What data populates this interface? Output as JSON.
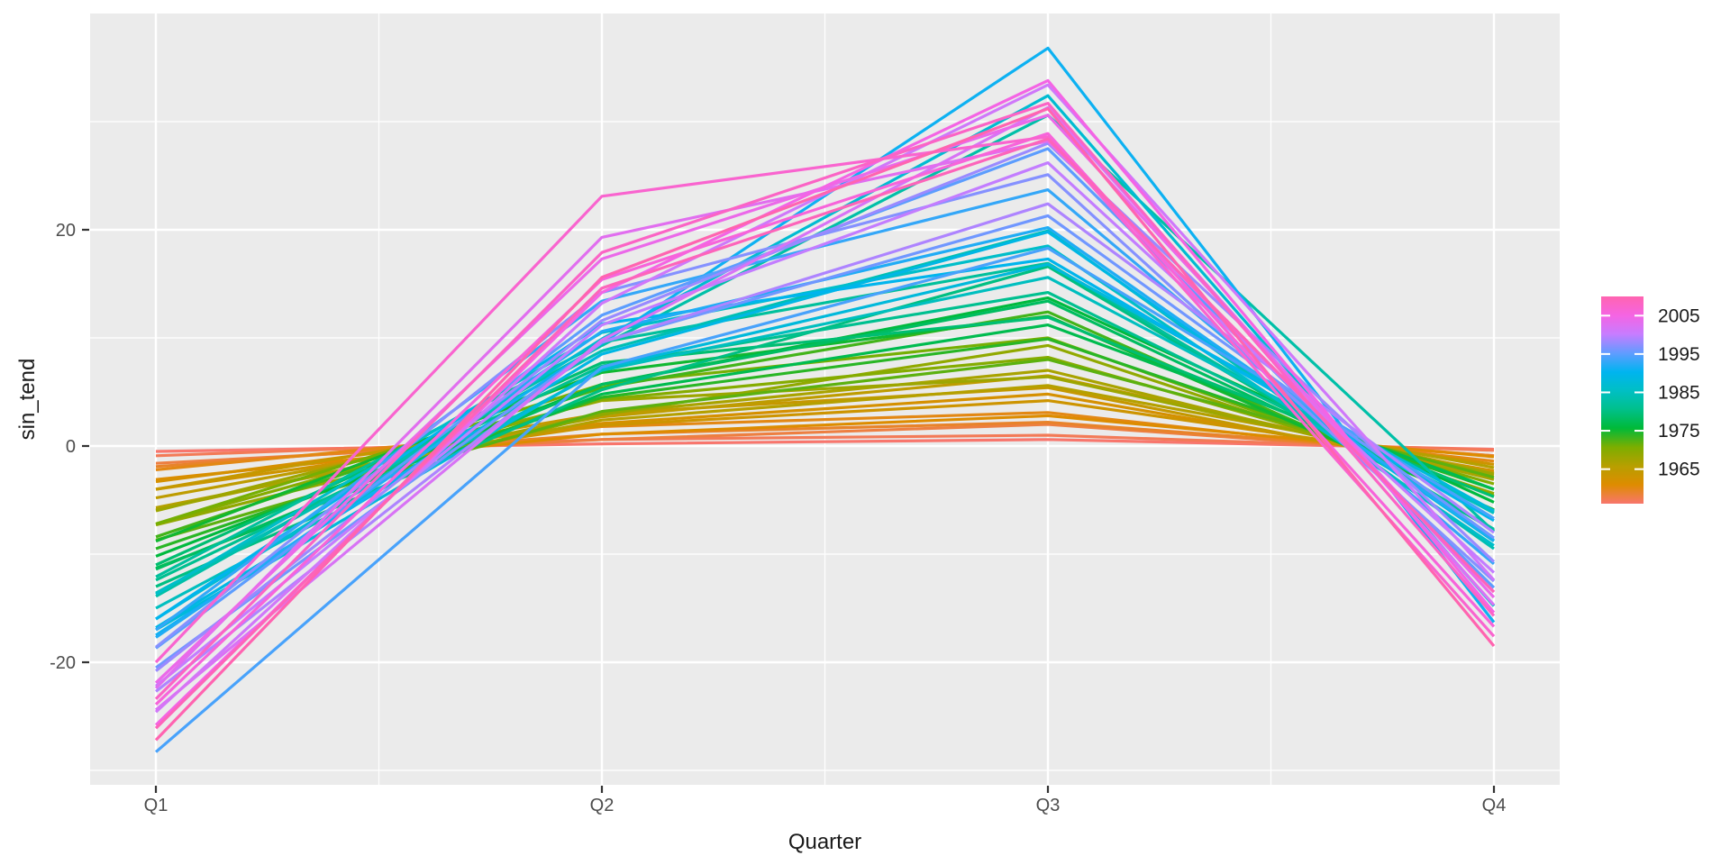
{
  "figure": {
    "background": "#FFFFFF",
    "panel_background": "#EBEBEB",
    "grid_color": "#FFFFFF",
    "tick_mark_color": "#333333",
    "axis_text_color": "#4D4D4D",
    "axis_title_color": "#1A1A1A",
    "legend_text_color": "#1A1A1A"
  },
  "chart_data": {
    "type": "line",
    "title": "",
    "xlabel": "Quarter",
    "ylabel": "sin_tend",
    "categories": [
      "Q1",
      "Q2",
      "Q3",
      "Q4"
    ],
    "x_numeric": [
      1,
      2,
      3,
      4
    ],
    "y_ticks": [
      -20,
      0,
      20
    ],
    "y_tick_labels": [
      "-20",
      "0",
      "20"
    ],
    "y_minor_gridlines": [
      -30,
      -10,
      10,
      30
    ],
    "x_minor_gridlines": [
      1.5,
      2.5,
      3.5
    ],
    "ylim": [
      -31.3,
      40.0
    ],
    "xlim": [
      0.85,
      4.15
    ],
    "grid": true,
    "legend": {
      "title": "",
      "position": "right",
      "style": "colorbar",
      "variable": "year",
      "range": [
        1956,
        2010
      ],
      "tick_labels": [
        "2005",
        "1995",
        "1985",
        "1975",
        "1965"
      ],
      "tick_years": [
        2005,
        1995,
        1985,
        1975,
        1965
      ],
      "gradient_bottom_to_top": [
        "#F8766D",
        "#DE8C00",
        "#B79F00",
        "#7CAE00",
        "#00BA38",
        "#00C08B",
        "#00BFC4",
        "#00B4F0",
        "#619CFF",
        "#C77CFF",
        "#F564E3",
        "#FF64B0"
      ]
    },
    "series": [
      {
        "name": "1956",
        "year": 1956,
        "values": [
          -0.5,
          0.2,
          0.6,
          -0.3
        ]
      },
      {
        "name": "1957",
        "year": 1957,
        "values": [
          -0.9,
          0.6,
          1.0,
          -0.4
        ]
      },
      {
        "name": "1958",
        "year": 1958,
        "values": [
          -1.6,
          0.6,
          2.0,
          -0.9
        ]
      },
      {
        "name": "1959",
        "year": 1959,
        "values": [
          -1.9,
          1.1,
          2.2,
          -0.9
        ]
      },
      {
        "name": "1960",
        "year": 1960,
        "values": [
          -2.2,
          1.8,
          3.1,
          -1.4
        ]
      },
      {
        "name": "1961",
        "year": 1961,
        "values": [
          -3.1,
          1.1,
          2.8,
          -1.0
        ]
      },
      {
        "name": "1962",
        "year": 1962,
        "values": [
          -3.3,
          2.1,
          4.8,
          -2.3
        ]
      },
      {
        "name": "1963",
        "year": 1963,
        "values": [
          -4.0,
          1.9,
          4.2,
          -1.7
        ]
      },
      {
        "name": "1964",
        "year": 1964,
        "values": [
          -4.0,
          3.0,
          5.4,
          -2.7
        ]
      },
      {
        "name": "1965",
        "year": 1965,
        "values": [
          -4.8,
          2.7,
          6.5,
          -2.5
        ]
      },
      {
        "name": "1966",
        "year": 1966,
        "values": [
          -5.7,
          2.4,
          5.6,
          -2.0
        ]
      },
      {
        "name": "1967",
        "year": 1967,
        "values": [
          -5.9,
          3.0,
          7.0,
          -3.1
        ]
      },
      {
        "name": "1968",
        "year": 1968,
        "values": [
          -6.0,
          4.2,
          6.4,
          -2.6
        ]
      },
      {
        "name": "1969",
        "year": 1969,
        "values": [
          -7.3,
          2.9,
          9.3,
          -4.4
        ]
      },
      {
        "name": "1970",
        "year": 1970,
        "values": [
          -7.2,
          4.3,
          8.2,
          -3.5
        ]
      },
      {
        "name": "1971",
        "year": 1971,
        "values": [
          -7.2,
          5.7,
          10.0,
          -4.6
        ]
      },
      {
        "name": "1972",
        "year": 1972,
        "values": [
          -8.7,
          3.2,
          8.0,
          -2.9
        ]
      },
      {
        "name": "1973",
        "year": 1973,
        "values": [
          -8.4,
          5.4,
          12.4,
          -5.9
        ]
      },
      {
        "name": "1974",
        "year": 1974,
        "values": [
          -9.5,
          4.5,
          9.9,
          -4.0
        ]
      },
      {
        "name": "1975",
        "year": 1975,
        "values": [
          -8.8,
          6.8,
          12.0,
          -5.9
        ]
      },
      {
        "name": "1976",
        "year": 1976,
        "values": [
          -10.2,
          5.7,
          13.7,
          -5.2
        ]
      },
      {
        "name": "1977",
        "year": 1977,
        "values": [
          -11.3,
          4.8,
          11.2,
          -4.0
        ]
      },
      {
        "name": "1978",
        "year": 1978,
        "values": [
          -11.4,
          5.7,
          13.4,
          -6.0
        ]
      },
      {
        "name": "1979",
        "year": 1979,
        "values": [
          -11.0,
          7.7,
          11.9,
          -4.7
        ]
      },
      {
        "name": "1980",
        "year": 1980,
        "values": [
          -13.0,
          5.2,
          16.6,
          -7.8
        ]
      },
      {
        "name": "1981",
        "year": 1981,
        "values": [
          -12.4,
          7.4,
          14.2,
          -6.1
        ]
      },
      {
        "name": "1982",
        "year": 1982,
        "values": [
          -12.1,
          9.6,
          16.9,
          -7.7
        ]
      },
      {
        "name": "1983",
        "year": 1983,
        "values": [
          -13.9,
          9.3,
          30.6,
          -7.9
        ]
      },
      {
        "name": "1984",
        "year": 1984,
        "values": [
          -13.6,
          8.8,
          19.9,
          -9.5
        ]
      },
      {
        "name": "1985",
        "year": 1985,
        "values": [
          -15.0,
          7.0,
          15.6,
          -6.2
        ]
      },
      {
        "name": "1986",
        "year": 1986,
        "values": [
          -13.7,
          10.5,
          18.5,
          -9.2
        ]
      },
      {
        "name": "1987",
        "year": 1987,
        "values": [
          -16.0,
          9.9,
          32.4,
          -14.8
        ]
      },
      {
        "name": "1988",
        "year": 1988,
        "values": [
          -17.0,
          7.2,
          16.8,
          -6.0
        ]
      },
      {
        "name": "1989",
        "year": 1989,
        "values": [
          -16.8,
          8.5,
          19.8,
          -8.8
        ]
      },
      {
        "name": "1990",
        "year": 1990,
        "values": [
          -16.0,
          11.3,
          17.3,
          -6.9
        ]
      },
      {
        "name": "1991",
        "year": 1991,
        "values": [
          -17.5,
          9.5,
          36.8,
          -16.3
        ]
      },
      {
        "name": "1992",
        "year": 1992,
        "values": [
          -17.7,
          10.6,
          20.2,
          -8.7
        ]
      },
      {
        "name": "1993",
        "year": 1993,
        "values": [
          -17.0,
          13.4,
          23.7,
          -10.9
        ]
      },
      {
        "name": "1994",
        "year": 1994,
        "values": [
          -28.3,
          7.3,
          18.3,
          -6.7
        ]
      },
      {
        "name": "1995",
        "year": 1995,
        "values": [
          -18.7,
          12.1,
          27.5,
          -13.1
        ]
      },
      {
        "name": "1996",
        "year": 1996,
        "values": [
          -20.5,
          9.6,
          21.3,
          -8.5
        ]
      },
      {
        "name": "1997",
        "year": 1997,
        "values": [
          -18.6,
          14.2,
          25.1,
          -12.5
        ]
      },
      {
        "name": "1998",
        "year": 1998,
        "values": [
          -20.8,
          11.6,
          28.0,
          -10.7
        ]
      },
      {
        "name": "1999",
        "year": 1999,
        "values": [
          -22.7,
          9.6,
          22.4,
          -8.0
        ]
      },
      {
        "name": "2000",
        "year": 2000,
        "values": [
          -22.2,
          11.2,
          26.2,
          -11.7
        ]
      },
      {
        "name": "2001",
        "year": 2001,
        "values": [
          -24.6,
          13.2,
          33.4,
          -12.4
        ]
      },
      {
        "name": "2002",
        "year": 2002,
        "values": [
          -24.4,
          9.8,
          31.3,
          -14.7
        ]
      },
      {
        "name": "2003",
        "year": 2003,
        "values": [
          -22.4,
          19.3,
          28.2,
          -13.5
        ]
      },
      {
        "name": "2004",
        "year": 2004,
        "values": [
          -21.9,
          17.3,
          30.6,
          -14.0
        ]
      },
      {
        "name": "2005",
        "year": 2005,
        "values": [
          -25.8,
          14.2,
          33.8,
          -15.4
        ]
      },
      {
        "name": "2006",
        "year": 2006,
        "values": [
          -23.9,
          15.4,
          28.9,
          -16.7
        ]
      },
      {
        "name": "2007",
        "year": 2007,
        "values": [
          -20.0,
          23.1,
          28.6,
          -17.6
        ]
      },
      {
        "name": "2008",
        "year": 2008,
        "values": [
          -23.4,
          17.9,
          31.7,
          -15.7
        ]
      },
      {
        "name": "2009",
        "year": 2009,
        "values": [
          -26.1,
          14.6,
          28.4,
          -13.5
        ]
      },
      {
        "name": "2010",
        "year": 2010,
        "values": [
          -27.2,
          15.6,
          31.2,
          -18.5
        ]
      }
    ]
  }
}
